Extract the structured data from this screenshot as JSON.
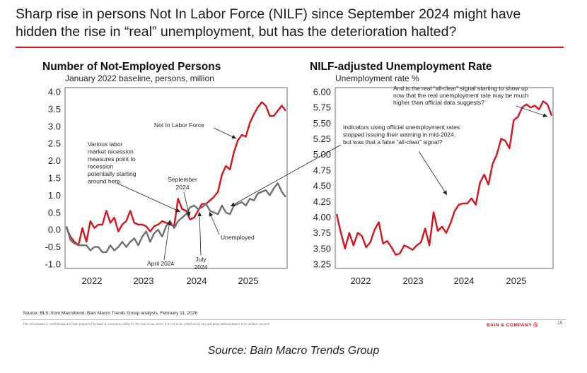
{
  "headline": {
    "line1": "Sharp rise in persons Not In Labor Force (NILF) since September 2024 might have",
    "line2": "hidden the rise in “real” unemployment, but has the deterioration halted?"
  },
  "colors": {
    "red_series": "#d8141b",
    "gray_series": "#6e6e6e",
    "rule": "#d8141b"
  },
  "chart_data": [
    {
      "type": "line",
      "title": "Number of Not-Employed Persons",
      "subtitle": "January 2022 baseline, persons, million",
      "ylim": [
        -1.0,
        4.0
      ],
      "yticks": [
        "4.0",
        "3.5",
        "3.0",
        "2.5",
        "2.0",
        "1.5",
        "1.0",
        "0.5",
        "0.0",
        "-0.5",
        "-1.0"
      ],
      "xticks": [
        "2022",
        "2023",
        "2024",
        "2025"
      ],
      "grid": false,
      "series": [
        {
          "name": "Not In Labor Force",
          "color": "#d8141b",
          "values": [
            0.05,
            -0.2,
            -0.35,
            -0.45,
            0.05,
            -0.35,
            0.25,
            0.05,
            0.15,
            0.15,
            0.55,
            0.2,
            0.35,
            -0.05,
            0.15,
            0.25,
            0.55,
            0.2,
            0.15,
            0.15,
            0.1,
            -0.05,
            0.1,
            0.15,
            0.25,
            0.2,
            0.15,
            0.1,
            0.9,
            0.6,
            0.55,
            0.3,
            0.35,
            0.55,
            0.75,
            0.75,
            0.85,
            0.95,
            1.1,
            1.6,
            1.85,
            1.75,
            2.25,
            2.6,
            2.75,
            2.7,
            3.1,
            3.35,
            3.55,
            3.7,
            3.6,
            3.3,
            3.3,
            3.45,
            3.6,
            3.45
          ]
        },
        {
          "name": "Unemployed",
          "color": "#6e6e6e",
          "values": [
            0.1,
            -0.3,
            -0.4,
            -0.45,
            -0.45,
            -0.45,
            -0.6,
            -0.5,
            -0.5,
            -0.65,
            -0.65,
            -0.45,
            -0.6,
            -0.5,
            -0.35,
            -0.5,
            -0.35,
            -0.25,
            -0.45,
            -0.2,
            -0.05,
            -0.35,
            -0.1,
            0.0,
            -0.2,
            0.1,
            0.25,
            0.05,
            0.25,
            0.35,
            0.45,
            0.65,
            0.7,
            0.6,
            0.65,
            0.75,
            0.55,
            0.5,
            0.45,
            0.7,
            0.5,
            0.45,
            0.7,
            0.75,
            0.8,
            0.7,
            0.9,
            0.85,
            1.05,
            1.1,
            1.15,
            1.0,
            1.2,
            1.35,
            1.1,
            0.95
          ]
        }
      ],
      "annotations": {
        "nilf_label": "Not In Labor Force",
        "unemployed_label": "Unemployed",
        "recession_note": [
          "Various labor",
          "market recession",
          "measures point to",
          "recession",
          "potentially starting",
          "around here."
        ],
        "september": [
          "September",
          "2024"
        ],
        "april": "April 2024",
        "july": [
          "July",
          "2024"
        ]
      }
    },
    {
      "type": "line",
      "title": "NILF-adjusted Unemployment Rate",
      "subtitle": "Unemployment rate %",
      "ylim": [
        3.25,
        6.0
      ],
      "yticks": [
        "6.00",
        "5.75",
        "5.50",
        "5.25",
        "5.00",
        "4.75",
        "4.50",
        "4.25",
        "4.00",
        "3.75",
        "3.50",
        "3.25"
      ],
      "xticks": [
        "2022",
        "2023",
        "2024",
        "2025"
      ],
      "grid": false,
      "series": [
        {
          "name": "NILF-adjusted Unemployment Rate",
          "color": "#d8141b",
          "values": [
            4.05,
            3.75,
            3.5,
            3.75,
            3.55,
            3.75,
            3.7,
            3.52,
            3.6,
            3.8,
            3.92,
            3.58,
            3.62,
            3.52,
            3.4,
            3.42,
            3.55,
            3.52,
            3.48,
            3.55,
            3.6,
            3.82,
            3.55,
            4.08,
            3.78,
            3.85,
            3.75,
            3.9,
            4.1,
            4.2,
            4.22,
            4.22,
            4.3,
            4.2,
            4.55,
            4.68,
            4.52,
            4.85,
            5.0,
            5.25,
            5.22,
            5.1,
            5.55,
            5.6,
            5.75,
            5.8,
            5.75,
            5.78,
            5.72,
            5.85,
            5.8,
            5.62
          ]
        }
      ],
      "annotations": {
        "allclear_note": [
          "And is the real “all-clear” signal starting to show up",
          "now that the real unemployment rate may be much",
          "higher than official data suggests?"
        ],
        "indicators_note": [
          "Indicators using official unemployment rates",
          "stopped issuing their warning in mid-2024,",
          "but was that a false “all-clear” signal?"
        ]
      }
    }
  ],
  "footer": {
    "source": "Source: BLS, from Macrobond; Bain Macro Trends Group analysis, February 11, 2026",
    "confidential": "This information is confidential and was prepared by Bain & Company solely for the use of our client; it is not to be relied on by any 3rd party without Bain's prior written consent",
    "brand": "BAIN & COMPANY ⓑ",
    "page": "15"
  },
  "caption": "Source: Bain Macro Trends Group"
}
